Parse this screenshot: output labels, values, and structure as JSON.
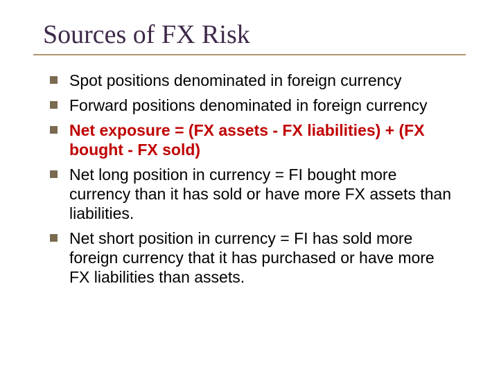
{
  "title": "Sources of FX Risk",
  "colors": {
    "title_color": "#3f2a4a",
    "rule_color": "#b0926d",
    "bullet_marker": "#7a6a4f",
    "body_text": "#000000",
    "emphasis": "#c00000",
    "background": "#ffffff"
  },
  "typography": {
    "title_font": "Times New Roman",
    "title_size_pt": 28,
    "body_font": "Arial",
    "body_size_pt": 17
  },
  "bullets": [
    {
      "text": "Spot positions denominated in foreign currency",
      "emphasis": false
    },
    {
      "text": "Forward positions denominated in foreign currency",
      "emphasis": false
    },
    {
      "text": "Net exposure = (FX assets - FX liabilities) + (FX bought - FX sold)",
      "emphasis": true
    },
    {
      "text": "Net long position in currency = FI bought more currency than it has sold or have more FX assets than liabilities.",
      "emphasis": false
    },
    {
      "text": "Net short position in currency = FI has sold more foreign currency that it has purchased or have more FX liabilities than assets.",
      "emphasis": false
    }
  ]
}
